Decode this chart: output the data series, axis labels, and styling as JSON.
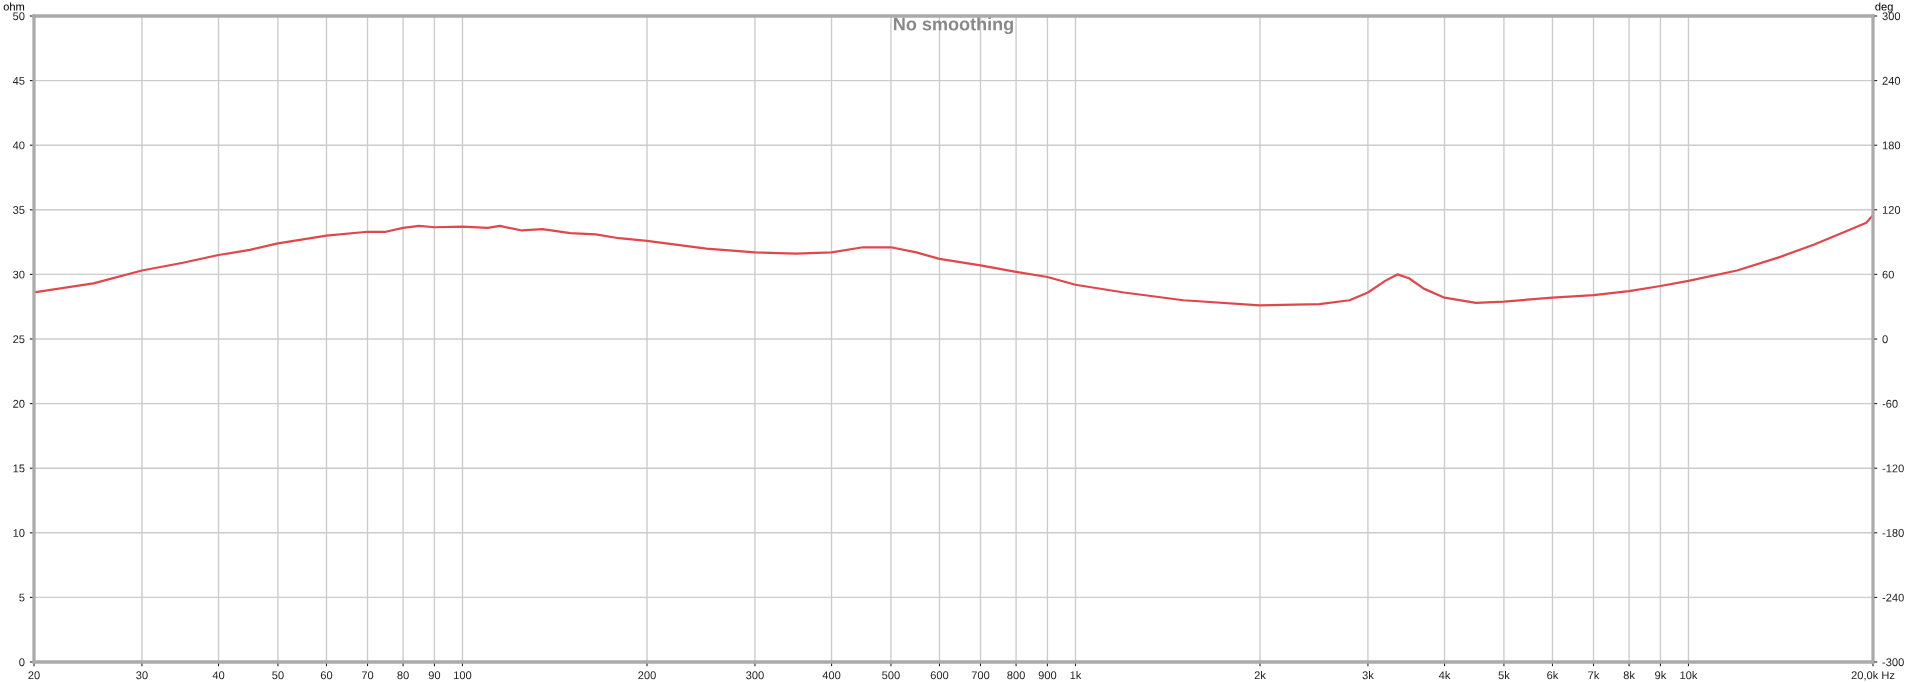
{
  "chart_data": {
    "type": "line",
    "title": "No smoothing",
    "ylabel": "ohm",
    "y2label": "deg",
    "x": [
      20,
      25,
      30,
      35,
      40,
      45,
      50,
      60,
      70,
      75,
      80,
      85,
      90,
      100,
      110,
      115,
      125,
      135,
      150,
      165,
      180,
      200,
      250,
      300,
      350,
      400,
      450,
      500,
      550,
      600,
      700,
      800,
      900,
      1000,
      1200,
      1500,
      2000,
      2500,
      2800,
      3000,
      3200,
      3350,
      3500,
      3700,
      4000,
      4500,
      5000,
      6000,
      7000,
      8000,
      9000,
      10000,
      12000,
      14000,
      16000,
      18000,
      19500,
      20000
    ],
    "series": [
      {
        "color": "#e0474c",
        "values": [
          28.6,
          29.3,
          30.3,
          30.9,
          31.5,
          31.9,
          32.4,
          33.0,
          33.3,
          33.3,
          33.6,
          33.75,
          33.65,
          33.7,
          33.6,
          33.75,
          33.4,
          33.5,
          33.2,
          33.1,
          32.8,
          32.6,
          32.0,
          31.7,
          31.6,
          31.7,
          32.1,
          32.1,
          31.7,
          31.2,
          30.7,
          30.2,
          29.8,
          29.2,
          28.6,
          28.0,
          27.6,
          27.7,
          28.0,
          28.6,
          29.5,
          30.0,
          29.7,
          28.9,
          28.2,
          27.8,
          27.9,
          28.2,
          28.4,
          28.7,
          29.1,
          29.5,
          30.3,
          31.3,
          32.3,
          33.3,
          34.0,
          34.6
        ]
      }
    ],
    "log": "x",
    "xlim": [
      20,
      20000
    ],
    "xticks": [
      20,
      30,
      40,
      50,
      60,
      70,
      80,
      90,
      100,
      200,
      300,
      400,
      500,
      600,
      700,
      800,
      900,
      {
        "value": 1000,
        "label": "1k"
      },
      {
        "value": 2000,
        "label": "2k"
      },
      {
        "value": 3000,
        "label": "3k"
      },
      {
        "value": 4000,
        "label": "4k"
      },
      {
        "value": 5000,
        "label": "5k"
      },
      {
        "value": 6000,
        "label": "6k"
      },
      {
        "value": 7000,
        "label": "7k"
      },
      {
        "value": 8000,
        "label": "8k"
      },
      {
        "value": 9000,
        "label": "9k"
      },
      {
        "value": 10000,
        "label": "10k"
      },
      {
        "value": 20000,
        "label": "20,0k Hz"
      }
    ],
    "ylim": [
      0,
      50
    ],
    "yticks": [
      0,
      5,
      10,
      15,
      20,
      25,
      30,
      35,
      40,
      45,
      50
    ],
    "y2lim": [
      -300,
      300
    ],
    "y2ticks": [
      -300,
      -240,
      -180,
      -120,
      -60,
      0,
      60,
      120,
      180,
      240,
      300
    ],
    "grid": true,
    "line_style": "solid"
  }
}
